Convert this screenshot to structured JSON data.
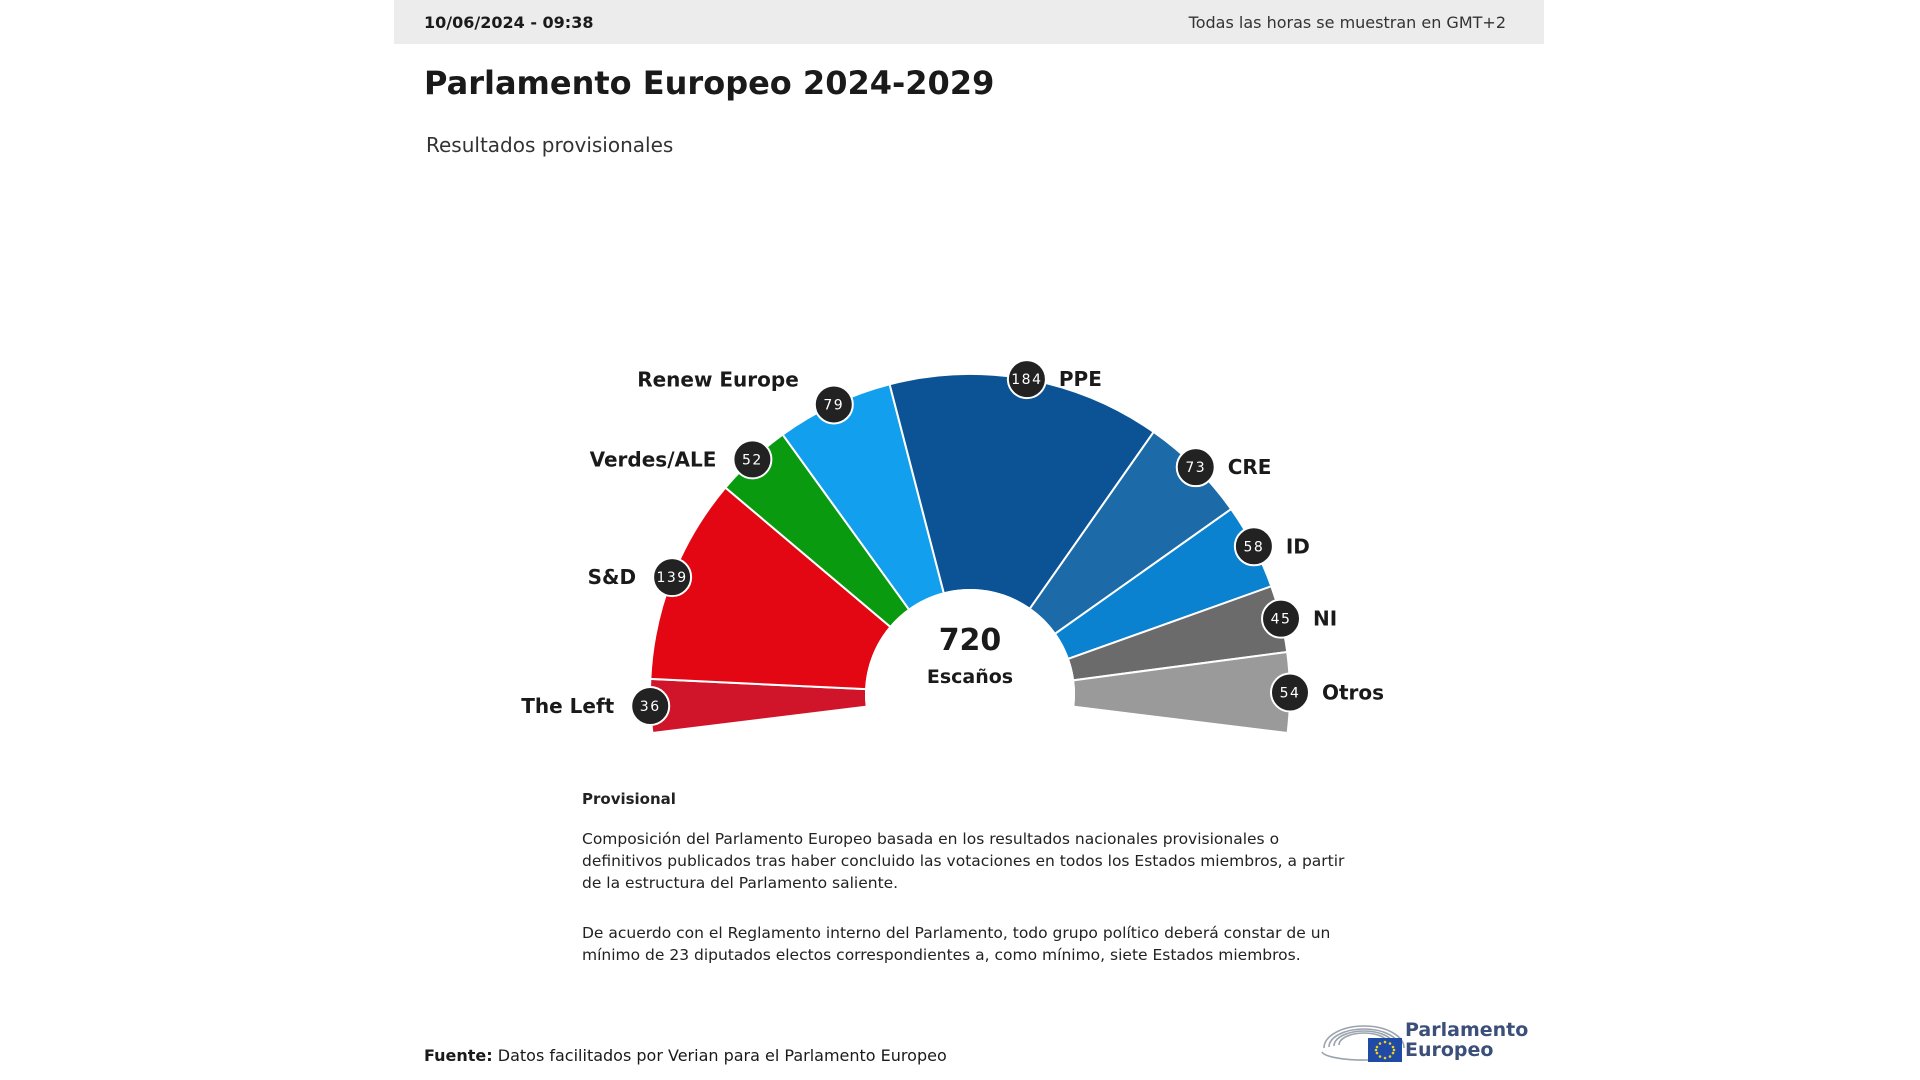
{
  "header": {
    "datetime": "10/06/2024 - 09:38",
    "timezone_note": "Todas las horas se muestran en GMT+2"
  },
  "title": "Parlamento Europeo 2024-2029",
  "subtitle": "Resultados provisionales",
  "chart_data": {
    "type": "pie",
    "variant": "hemicycle",
    "total": {
      "value": "720",
      "label": "Escaños"
    },
    "slices": [
      {
        "name": "The Left",
        "value": 36,
        "color": "#d0152a"
      },
      {
        "name": "S&D",
        "value": 139,
        "color": "#e30613"
      },
      {
        "name": "Verdes/ALE",
        "value": 52,
        "color": "#0a9a10"
      },
      {
        "name": "Renew Europe",
        "value": 79,
        "color": "#12a0ee"
      },
      {
        "name": "PPE",
        "value": 184,
        "color": "#0b5395"
      },
      {
        "name": "CRE",
        "value": 73,
        "color": "#1d6aa8"
      },
      {
        "name": "ID",
        "value": 58,
        "color": "#0a82cf"
      },
      {
        "name": "NI",
        "value": 45,
        "color": "#6b6b6b"
      },
      {
        "name": "Otros",
        "value": 54,
        "color": "#9a9a9a"
      }
    ]
  },
  "notes": {
    "heading": "Provisional",
    "p1": "Composición del Parlamento Europeo basada en los resultados nacionales provisionales o definitivos publicados tras haber concluido las votaciones en todos los Estados miembros, a partir de la estructura del Parlamento saliente.",
    "p2": "De acuerdo con el Reglamento interno del Parlamento, todo grupo político deberá constar de un mínimo de 23 diputados electos correspondientes a, como mínimo, siete Estados miembros."
  },
  "source": {
    "label": "Fuente:",
    "text": " Datos facilitados por Verian para el Parlamento Europeo"
  },
  "logo": {
    "line1": "Parlamento",
    "line2": "Europeo"
  }
}
